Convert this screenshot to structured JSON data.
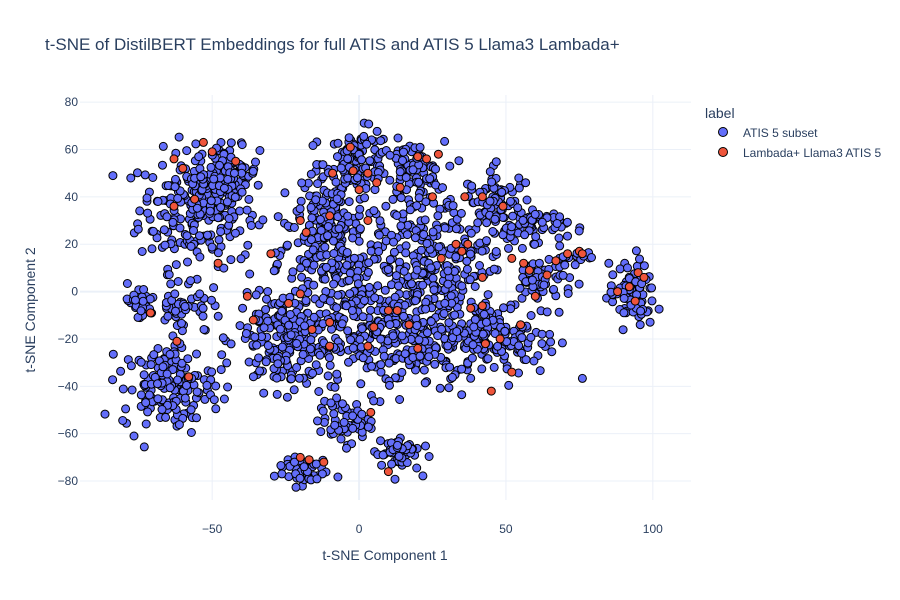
{
  "chart_data": {
    "type": "scatter",
    "title": "t-SNE of DistilBERT Embeddings for full ATIS and ATIS 5 Llama3 Lambada+",
    "xlabel": "t-SNE Component 1",
    "ylabel": "t-SNE Component 2",
    "xlim": [
      -95,
      113
    ],
    "ylim": [
      -88,
      83
    ],
    "xticks": [
      -50,
      0,
      50,
      100
    ],
    "xtick_labels": [
      "−50",
      "0",
      "50",
      "100"
    ],
    "yticks": [
      -80,
      -60,
      -40,
      -20,
      0,
      20,
      40,
      60,
      80
    ],
    "ytick_labels": [
      "−80",
      "−60",
      "−40",
      "−20",
      "0",
      "20",
      "40",
      "60",
      "80"
    ],
    "grid": true,
    "legend": {
      "title": "label",
      "position": "top-right"
    },
    "clusters": [
      {
        "cx": -55,
        "cy": 35,
        "rx": 18,
        "ry": 22,
        "n": 230
      },
      {
        "cx": -45,
        "cy": 50,
        "rx": 10,
        "ry": 10,
        "n": 80
      },
      {
        "cx": -12,
        "cy": 28,
        "rx": 10,
        "ry": 22,
        "n": 110
      },
      {
        "cx": 0,
        "cy": 55,
        "rx": 10,
        "ry": 12,
        "n": 100
      },
      {
        "cx": 18,
        "cy": 50,
        "rx": 10,
        "ry": 12,
        "n": 80
      },
      {
        "cx": -5,
        "cy": 10,
        "rx": 22,
        "ry": 30,
        "n": 230
      },
      {
        "cx": 28,
        "cy": 10,
        "rx": 20,
        "ry": 30,
        "n": 240
      },
      {
        "cx": 48,
        "cy": 35,
        "rx": 10,
        "ry": 15,
        "n": 90
      },
      {
        "cx": 60,
        "cy": 28,
        "rx": 10,
        "ry": 6,
        "n": 50
      },
      {
        "cx": 62,
        "cy": 5,
        "rx": 10,
        "ry": 10,
        "n": 60
      },
      {
        "cx": -25,
        "cy": -20,
        "rx": 15,
        "ry": 20,
        "n": 190
      },
      {
        "cx": 12,
        "cy": -20,
        "rx": 25,
        "ry": 20,
        "n": 260
      },
      {
        "cx": 48,
        "cy": -20,
        "rx": 18,
        "ry": 14,
        "n": 130
      },
      {
        "cx": -60,
        "cy": -5,
        "rx": 8,
        "ry": 12,
        "n": 50
      },
      {
        "cx": -75,
        "cy": -5,
        "rx": 5,
        "ry": 7,
        "n": 30
      },
      {
        "cx": -65,
        "cy": -40,
        "rx": 14,
        "ry": 16,
        "n": 150
      },
      {
        "cx": -5,
        "cy": -55,
        "rx": 8,
        "ry": 8,
        "n": 60
      },
      {
        "cx": 13,
        "cy": -68,
        "rx": 7,
        "ry": 7,
        "n": 55
      },
      {
        "cx": -20,
        "cy": -75,
        "rx": 8,
        "ry": 6,
        "n": 50
      },
      {
        "cx": 93,
        "cy": -2,
        "rx": 7,
        "ry": 12,
        "n": 90
      },
      {
        "cx": 75,
        "cy": 15,
        "rx": 5,
        "ry": 3,
        "n": 15
      }
    ],
    "series": [
      {
        "name": "ATIS 5 subset",
        "color": "#636efa",
        "points": []
      },
      {
        "name": "Lambada+ Llama3 ATIS 5",
        "color": "#ef553b",
        "points": [
          [
            -63,
            56
          ],
          [
            -60,
            52
          ],
          [
            -53,
            63
          ],
          [
            -50,
            59
          ],
          [
            -42,
            55
          ],
          [
            -56,
            39
          ],
          [
            -48,
            12
          ],
          [
            -63,
            36
          ],
          [
            -71,
            -9
          ],
          [
            -62,
            -21
          ],
          [
            -58,
            -36
          ],
          [
            -38,
            -2
          ],
          [
            -36,
            -12
          ],
          [
            -30,
            16
          ],
          [
            -24,
            -5
          ],
          [
            -20,
            -1
          ],
          [
            -16,
            -16
          ],
          [
            -10,
            -23
          ],
          [
            -17,
            -71
          ],
          [
            -20,
            -70
          ],
          [
            -12,
            -72
          ],
          [
            -3,
            61
          ],
          [
            -9,
            50
          ],
          [
            -10,
            32
          ],
          [
            -20,
            30
          ],
          [
            -18,
            25
          ],
          [
            0,
            43
          ],
          [
            -2,
            51
          ],
          [
            3,
            50
          ],
          [
            6,
            46
          ],
          [
            3,
            30
          ],
          [
            5,
            -15
          ],
          [
            10,
            -8
          ],
          [
            13,
            -8
          ],
          [
            -10,
            -13
          ],
          [
            3,
            -23
          ],
          [
            4,
            -51
          ],
          [
            10,
            -76
          ],
          [
            14,
            44
          ],
          [
            20,
            57
          ],
          [
            23,
            56
          ],
          [
            27,
            58
          ],
          [
            25,
            40
          ],
          [
            33,
            20
          ],
          [
            35,
            17
          ],
          [
            28,
            14
          ],
          [
            42,
            40
          ],
          [
            36,
            40
          ],
          [
            37,
            20
          ],
          [
            42,
            6
          ],
          [
            38,
            -7
          ],
          [
            42,
            -6
          ],
          [
            43,
            -22
          ],
          [
            48,
            -20
          ],
          [
            45,
            -42
          ],
          [
            52,
            -34
          ],
          [
            55,
            -14
          ],
          [
            49,
            36
          ],
          [
            52,
            14
          ],
          [
            56,
            12
          ],
          [
            58,
            9
          ],
          [
            60,
            -2
          ],
          [
            64,
            7
          ],
          [
            67,
            13
          ],
          [
            71,
            16
          ],
          [
            75,
            17
          ],
          [
            76,
            16
          ],
          [
            95,
            8
          ],
          [
            92,
            2
          ],
          [
            97,
            6
          ],
          [
            94,
            -4
          ],
          [
            88,
            0
          ],
          [
            17,
            -14
          ],
          [
            20,
            -24
          ]
        ]
      }
    ]
  }
}
